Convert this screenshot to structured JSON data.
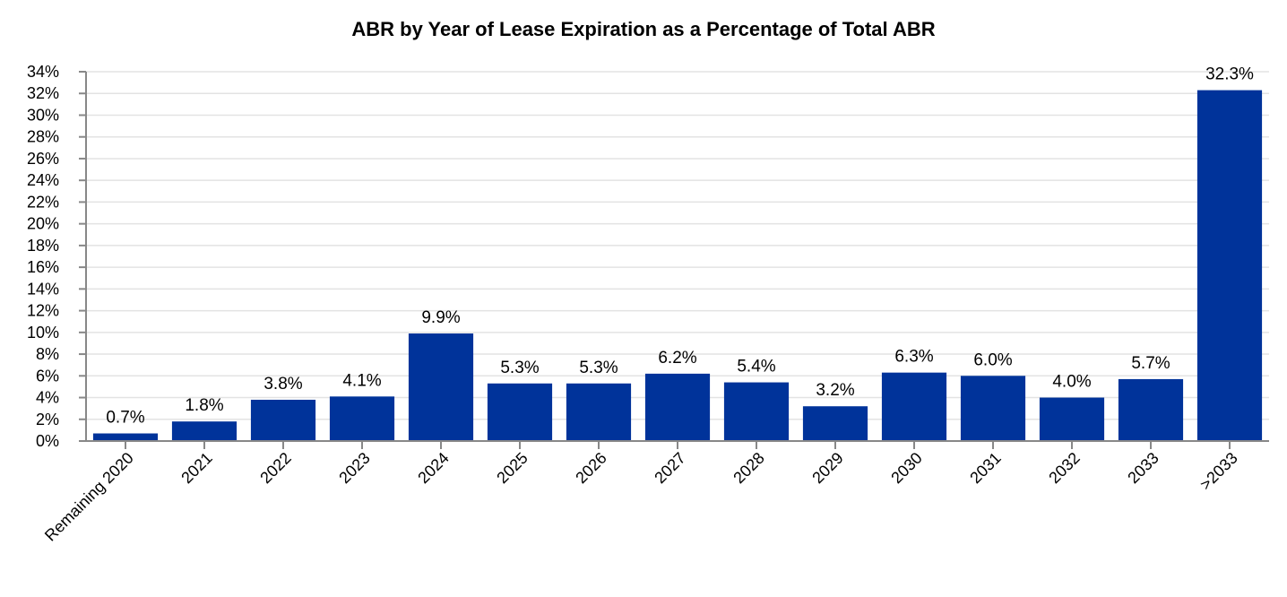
{
  "chart_data": {
    "type": "bar",
    "title": "ABR by Year of Lease Expiration as a Percentage of Total ABR",
    "xlabel": "",
    "ylabel": "",
    "categories": [
      "Remaining 2020",
      "2021",
      "2022",
      "2023",
      "2024",
      "2025",
      "2026",
      "2027",
      "2028",
      "2029",
      "2030",
      "2031",
      "2032",
      "2033",
      ">2033"
    ],
    "values": [
      0.7,
      1.8,
      3.8,
      4.1,
      9.9,
      5.3,
      5.3,
      6.2,
      5.4,
      3.2,
      6.3,
      6.0,
      4.0,
      5.7,
      32.3
    ],
    "value_labels": [
      "0.7%",
      "1.8%",
      "3.8%",
      "4.1%",
      "9.9%",
      "5.3%",
      "5.3%",
      "6.2%",
      "5.4%",
      "3.2%",
      "6.3%",
      "6.0%",
      "4.0%",
      "5.7%",
      "32.3%"
    ],
    "ylim": [
      0,
      34
    ],
    "y_ticks": [
      0,
      2,
      4,
      6,
      8,
      10,
      12,
      14,
      16,
      18,
      20,
      22,
      24,
      26,
      28,
      30,
      32,
      34
    ],
    "y_tick_labels": [
      "0%",
      "2%",
      "4%",
      "6%",
      "8%",
      "10%",
      "12%",
      "14%",
      "16%",
      "18%",
      "20%",
      "22%",
      "24%",
      "26%",
      "28%",
      "30%",
      "32%",
      "34%"
    ],
    "grid": true,
    "legend": "none",
    "bar_color": "#00339A"
  }
}
